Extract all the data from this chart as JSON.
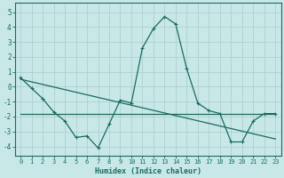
{
  "xlabel": "Humidex (Indice chaleur)",
  "ylabel": "",
  "bg_color": "#c8e8e8",
  "line_color": "#1a6b5a",
  "grid_color": "#b0d0d0",
  "xlim": [
    -0.5,
    23.5
  ],
  "ylim": [
    -4.6,
    5.6
  ],
  "xticks": [
    0,
    1,
    2,
    3,
    4,
    5,
    6,
    7,
    8,
    9,
    10,
    11,
    12,
    13,
    14,
    15,
    16,
    17,
    18,
    19,
    20,
    21,
    22,
    23
  ],
  "yticks": [
    -4,
    -3,
    -2,
    -1,
    0,
    1,
    2,
    3,
    4,
    5
  ],
  "line1_x": [
    0,
    1,
    2,
    3,
    4,
    5,
    6,
    7,
    8,
    9,
    10,
    11,
    12,
    13,
    14,
    15,
    16,
    17,
    18,
    19,
    20,
    21,
    22,
    23
  ],
  "line1_y": [
    0.6,
    -0.1,
    -0.8,
    -1.7,
    -2.3,
    -3.4,
    -3.3,
    -4.1,
    -2.5,
    -0.9,
    -1.1,
    2.6,
    3.9,
    4.7,
    4.2,
    1.2,
    -1.1,
    -1.6,
    -1.8,
    -3.7,
    -3.7,
    -2.3,
    -1.8,
    -1.8
  ],
  "line2_x": [
    0,
    23
  ],
  "line2_y": [
    -1.8,
    -1.8
  ],
  "line3_x": [
    0,
    23
  ],
  "line3_y": [
    0.5,
    -3.5
  ]
}
